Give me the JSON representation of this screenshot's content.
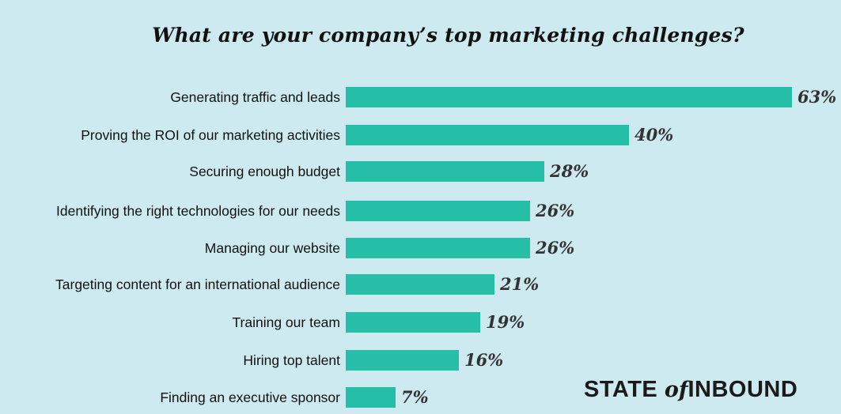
{
  "chart_data": {
    "type": "bar",
    "orientation": "horizontal",
    "title": "What are your company’s top marketing challenges?",
    "categories": [
      "Generating traffic and leads",
      "Proving the ROI of our marketing activities",
      "Securing enough budget",
      "Identifying the right technologies for our needs",
      "Managing our website",
      "Targeting content for an international audience",
      "Training our team",
      "Hiring top talent",
      "Finding an executive sponsor"
    ],
    "values": [
      63,
      40,
      28,
      26,
      26,
      21,
      19,
      16,
      7
    ],
    "value_labels": [
      "63%",
      "40%",
      "28%",
      "26%",
      "26%",
      "21%",
      "19%",
      "16%",
      "7%"
    ],
    "unit": "%",
    "xlim": [
      0,
      63
    ],
    "grid": false,
    "bar_color": "#26bea6"
  },
  "branding": {
    "part1": "STATE",
    "part2": "of",
    "part3": "INBOUND"
  },
  "colors": {
    "background": "#cdeaf0",
    "bar": "#26bea6"
  }
}
